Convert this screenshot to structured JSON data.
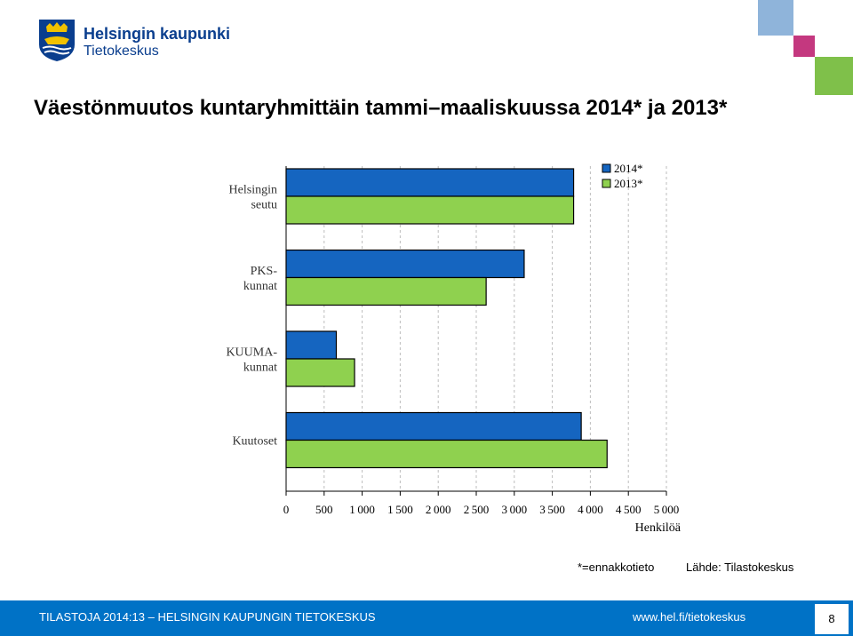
{
  "header": {
    "logo_name": "Helsingin kaupunki",
    "logo_sub": "Tietokeskus",
    "title": "Väestönmuutos kuntaryhmittäin tammi–maaliskuussa 2014* ja 2013*"
  },
  "colors": {
    "series_2014": "#1565c0",
    "series_2013": "#8fd14f",
    "footer_bg": "#0072c6"
  },
  "chart_data": {
    "type": "bar",
    "orientation": "horizontal",
    "categories": [
      "Helsingin seutu",
      "PKS-kunnat",
      "KUUMA-kunnat",
      "Kuutoset"
    ],
    "category_labels": [
      [
        "Helsingin",
        "seutu"
      ],
      [
        "PKS-",
        "kunnat"
      ],
      [
        "KUUMA-",
        "kunnat"
      ],
      [
        "Kuutoset"
      ]
    ],
    "series": [
      {
        "name": "2014*",
        "values": [
          3780,
          3130,
          660,
          3880
        ]
      },
      {
        "name": "2013*",
        "values": [
          3780,
          2630,
          900,
          4220
        ]
      }
    ],
    "xlabel": "Henkilöä",
    "xlim": [
      0,
      5000
    ],
    "xticks": [
      0,
      500,
      1000,
      1500,
      2000,
      2500,
      3000,
      3500,
      4000,
      4500,
      5000
    ],
    "xtick_labels": [
      "0",
      "500",
      "1 000",
      "1 500",
      "2 000",
      "2 500",
      "3 000",
      "3 500",
      "4 000",
      "4 500",
      "5 000"
    ],
    "grid": true,
    "legend": "top-right"
  },
  "notes": {
    "footnote": "*=ennakkotieto",
    "source": "Lähde: Tilastokeskus"
  },
  "footer": {
    "text": "TILASTOJA 2014:13 – HELSINGIN KAUPUNGIN TIETOKESKUS",
    "url": "www.hel.fi/tietokeskus",
    "page": "8"
  }
}
